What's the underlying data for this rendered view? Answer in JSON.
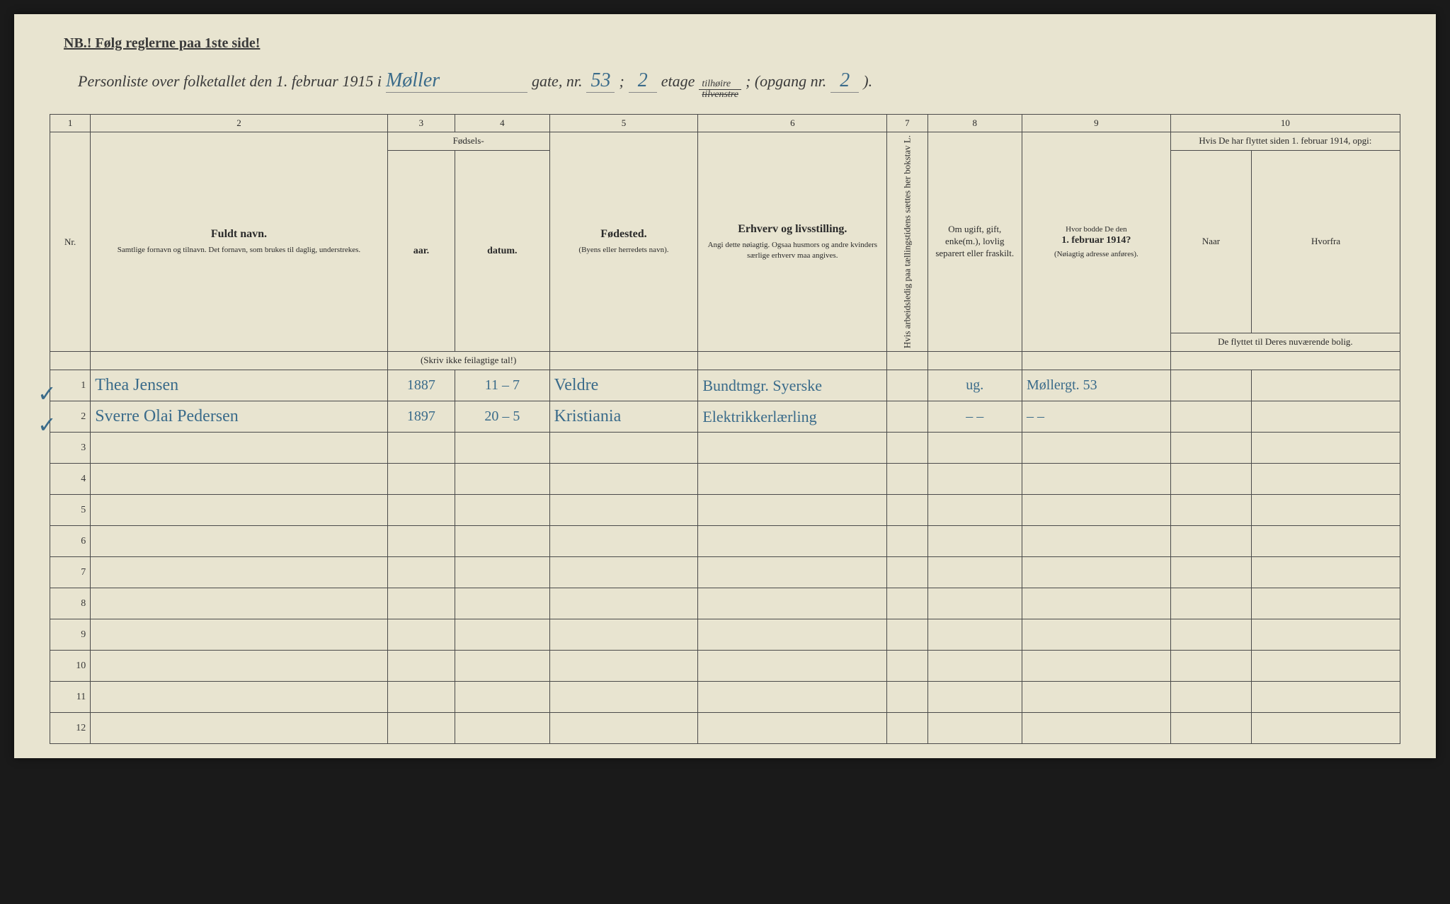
{
  "header": {
    "nb_line": "NB.!  Følg reglerne paa 1ste side!",
    "title_prefix": "Personliste over folketallet den 1. februar 1915 i",
    "street": "Møller",
    "gate_label": "gate, nr.",
    "gate_nr": "53",
    "semicolon": ";",
    "etage_nr": "2",
    "etage_label": "etage",
    "tilhoire": "tilhøire",
    "tilvenstre": "tilvenstre",
    "opgang_label": "; (opgang nr.",
    "opgang_nr": "2",
    "closing": ")."
  },
  "column_numbers": [
    "1",
    "2",
    "3",
    "4",
    "5",
    "6",
    "7",
    "8",
    "9",
    "10"
  ],
  "headers": {
    "nr": "Nr.",
    "fuldt_navn": "Fuldt navn.",
    "fuldt_sub": "Samtlige fornavn og tilnavn. Det fornavn, som brukes til daglig, understrekes.",
    "fodsels": "Fødsels-",
    "aar": "aar.",
    "datum": "datum.",
    "fodsels_note": "(Skriv ikke feilagtige tal!)",
    "fodested": "Fødested.",
    "fodested_sub": "(Byens eller herredets navn).",
    "erhverv": "Erhverv og livsstilling.",
    "erhverv_sub": "Angi dette nøiagtig. Ogsaa husmors og andre kvinders særlige erhverv maa angives.",
    "col7": "Hvis arbeidsledig paa tællingstidens sættes her bokstav L.",
    "col8": "Om ugift, gift, enke(m.), lovlig separert eller fraskilt.",
    "col9_a": "Hvor bodde De den",
    "col9_b": "1. februar 1914?",
    "col9_sub": "(Nøiagtig adresse anføres).",
    "col10_top": "Hvis De har flyttet siden 1. februar 1914, opgi:",
    "col10_naar": "Naar",
    "col10_hvorfra": "Hvorfra",
    "col10_bottom": "De flyttet til Deres nuværende bolig."
  },
  "rows": [
    {
      "nr": "1",
      "check": "✓",
      "name": "Thea Jensen",
      "year": "1887",
      "date": "11 – 7",
      "birthplace": "Veldre",
      "occupation": "Bundtmgr. Syerske",
      "col7": "",
      "col8": "ug.",
      "col9": "Møllergt. 53",
      "col10a": "",
      "col10b": ""
    },
    {
      "nr": "2",
      "check": "✓",
      "name": "Sverre Olai Pedersen",
      "year": "1897",
      "date": "20 – 5",
      "birthplace": "Kristiania",
      "occupation": "Elektrikkerlærling",
      "col7": "",
      "col8": "– –",
      "col9": "– –",
      "col10a": "",
      "col10b": ""
    },
    {
      "nr": "3",
      "check": "",
      "name": "",
      "year": "",
      "date": "",
      "birthplace": "",
      "occupation": "",
      "col7": "",
      "col8": "",
      "col9": "",
      "col10a": "",
      "col10b": ""
    },
    {
      "nr": "4",
      "check": "",
      "name": "",
      "year": "",
      "date": "",
      "birthplace": "",
      "occupation": "",
      "col7": "",
      "col8": "",
      "col9": "",
      "col10a": "",
      "col10b": ""
    },
    {
      "nr": "5",
      "check": "",
      "name": "",
      "year": "",
      "date": "",
      "birthplace": "",
      "occupation": "",
      "col7": "",
      "col8": "",
      "col9": "",
      "col10a": "",
      "col10b": ""
    },
    {
      "nr": "6",
      "check": "",
      "name": "",
      "year": "",
      "date": "",
      "birthplace": "",
      "occupation": "",
      "col7": "",
      "col8": "",
      "col9": "",
      "col10a": "",
      "col10b": ""
    },
    {
      "nr": "7",
      "check": "",
      "name": "",
      "year": "",
      "date": "",
      "birthplace": "",
      "occupation": "",
      "col7": "",
      "col8": "",
      "col9": "",
      "col10a": "",
      "col10b": ""
    },
    {
      "nr": "8",
      "check": "",
      "name": "",
      "year": "",
      "date": "",
      "birthplace": "",
      "occupation": "",
      "col7": "",
      "col8": "",
      "col9": "",
      "col10a": "",
      "col10b": ""
    },
    {
      "nr": "9",
      "check": "",
      "name": "",
      "year": "",
      "date": "",
      "birthplace": "",
      "occupation": "",
      "col7": "",
      "col8": "",
      "col9": "",
      "col10a": "",
      "col10b": ""
    },
    {
      "nr": "10",
      "check": "",
      "name": "",
      "year": "",
      "date": "",
      "birthplace": "",
      "occupation": "",
      "col7": "",
      "col8": "",
      "col9": "",
      "col10a": "",
      "col10b": ""
    },
    {
      "nr": "11",
      "check": "",
      "name": "",
      "year": "",
      "date": "",
      "birthplace": "",
      "occupation": "",
      "col7": "",
      "col8": "",
      "col9": "",
      "col10a": "",
      "col10b": ""
    },
    {
      "nr": "12",
      "check": "",
      "name": "",
      "year": "",
      "date": "",
      "birthplace": "",
      "occupation": "",
      "col7": "",
      "col8": "",
      "col9": "",
      "col10a": "",
      "col10b": ""
    }
  ]
}
